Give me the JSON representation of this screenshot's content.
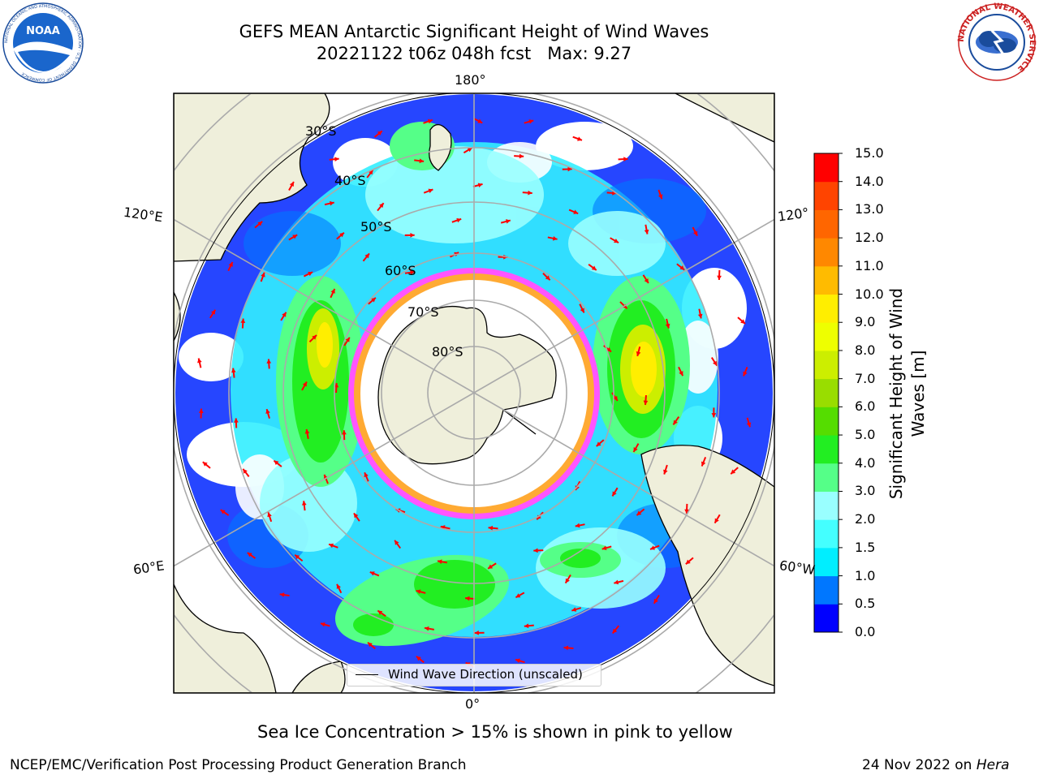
{
  "header": {
    "title_line1": "GEFS MEAN Antarctic Significant Height of Wind Waves",
    "title_line2": "20221122 t06z 048h fcst   Max: 9.27"
  },
  "logos": {
    "left_org": "NOAA",
    "left_ring_text": "NATIONAL OCEANIC AND ATMOSPHERIC ADMINISTRATION · U.S. DEPARTMENT OF COMMERCE",
    "right_ring_text": "NATIONAL WEATHER SERVICE"
  },
  "map": {
    "longitude_labels": [
      "180°",
      "120°E",
      "120°",
      "60°E",
      "60°W",
      "0°"
    ],
    "latitude_labels": [
      "30°S",
      "40°S",
      "50°S",
      "60°S",
      "70°S",
      "80°S"
    ],
    "legend_label": "Wind Wave Direction (unscaled)",
    "colors": {
      "land": "#efefdb",
      "ice_edge": "#ff55ff",
      "ice_inner": "#ffaa33",
      "arrow": "#ff0000",
      "grid": "#aaaaaa"
    }
  },
  "colorbar": {
    "label": "Significant Height of Wind Waves [m]",
    "ticks": [
      "0.0",
      "0.5",
      "1.0",
      "1.5",
      "2.0",
      "3.0",
      "4.0",
      "5.0",
      "6.0",
      "7.0",
      "8.0",
      "9.0",
      "10.0",
      "11.0",
      "12.0",
      "13.0",
      "14.0",
      "15.0"
    ],
    "colors": [
      "#0000ff",
      "#0077ff",
      "#00eeff",
      "#44ffff",
      "#99ffff",
      "#55ff88",
      "#22ee22",
      "#55dd00",
      "#99dd00",
      "#ccee00",
      "#eeff00",
      "#ffee00",
      "#ffbb00",
      "#ff8800",
      "#ff6600",
      "#ff4400",
      "#ff0000"
    ]
  },
  "caption": "Sea Ice Concentration > 15% is shown in pink to yellow",
  "footer": {
    "left": "NCEP/EMC/Verification Post Processing Product Generation Branch",
    "right_prefix": "24 Nov 2022 on ",
    "right_host": "Hera"
  }
}
